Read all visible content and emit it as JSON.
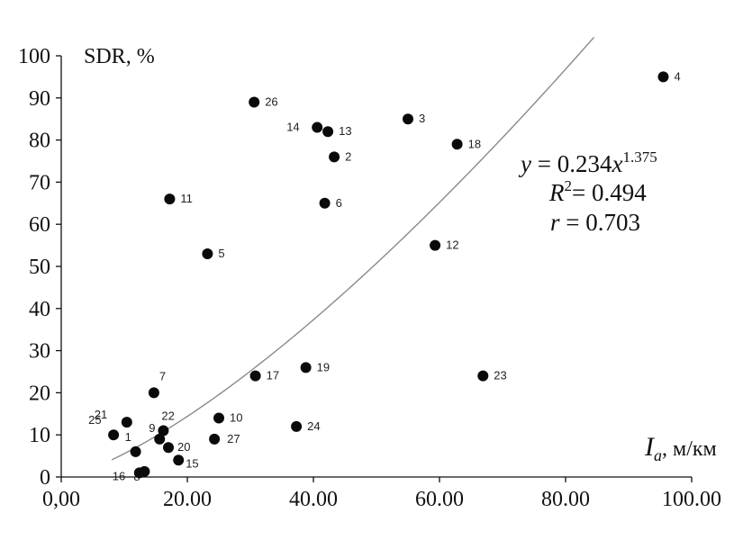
{
  "chart_data": {
    "type": "scatter",
    "ylabel": "SDR, %",
    "xlabel_main": "I",
    "xlabel_sub": "a",
    "xlabel_unit": ", м/км",
    "xlim": [
      0,
      100
    ],
    "ylim": [
      0,
      100
    ],
    "x_ticks": [
      0,
      20,
      40,
      60,
      80,
      100
    ],
    "x_tick_labels": [
      "0,00",
      "20.00",
      "40.00",
      "60.00",
      "80.00",
      "100.00"
    ],
    "y_ticks": [
      0,
      10,
      20,
      30,
      40,
      50,
      60,
      70,
      80,
      90,
      100
    ],
    "y_tick_labels": [
      "0",
      "10",
      "20",
      "30",
      "40",
      "50",
      "60",
      "70",
      "80",
      "90",
      "100"
    ],
    "grid": false,
    "points": [
      {
        "label": "1",
        "x": 11.8,
        "y": 6
      },
      {
        "label": "2",
        "x": 43.3,
        "y": 76
      },
      {
        "label": "3",
        "x": 55.0,
        "y": 85
      },
      {
        "label": "4",
        "x": 95.5,
        "y": 95
      },
      {
        "label": "5",
        "x": 23.2,
        "y": 53
      },
      {
        "label": "6",
        "x": 41.8,
        "y": 65
      },
      {
        "label": "7",
        "x": 14.7,
        "y": 20
      },
      {
        "label": "8",
        "x": 13.2,
        "y": 1.3
      },
      {
        "label": "9",
        "x": 15.6,
        "y": 9
      },
      {
        "label": "10",
        "x": 25.0,
        "y": 14
      },
      {
        "label": "11",
        "x": 17.2,
        "y": 66
      },
      {
        "label": "12",
        "x": 59.3,
        "y": 55
      },
      {
        "label": "13",
        "x": 42.3,
        "y": 82
      },
      {
        "label": "14",
        "x": 40.6,
        "y": 83
      },
      {
        "label": "15",
        "x": 18.6,
        "y": 4
      },
      {
        "label": "16",
        "x": 12.4,
        "y": 1
      },
      {
        "label": "17",
        "x": 30.8,
        "y": 24
      },
      {
        "label": "18",
        "x": 62.8,
        "y": 79
      },
      {
        "label": "19",
        "x": 38.8,
        "y": 26
      },
      {
        "label": "20",
        "x": 17.0,
        "y": 7
      },
      {
        "label": "21",
        "x": 10.4,
        "y": 13
      },
      {
        "label": "22",
        "x": 16.2,
        "y": 11
      },
      {
        "label": "23",
        "x": 66.9,
        "y": 24
      },
      {
        "label": "24",
        "x": 37.3,
        "y": 12
      },
      {
        "label": "25",
        "x": 8.3,
        "y": 10
      },
      {
        "label": "26",
        "x": 30.6,
        "y": 89
      },
      {
        "label": "27",
        "x": 24.3,
        "y": 9
      }
    ],
    "trendline": {
      "type": "power",
      "coefficient": 0.234,
      "exponent": 1.375,
      "x_from": 8,
      "x_to": 84.5
    },
    "equation": {
      "y_label": "y",
      "eq_text": " = 0.234",
      "x_label": "x",
      "exponent": "1.375",
      "r2_label": "R",
      "r2_sup": "2",
      "r2_value": "= 0.494",
      "r_label": "r",
      "r_value": " = 0.703"
    }
  }
}
